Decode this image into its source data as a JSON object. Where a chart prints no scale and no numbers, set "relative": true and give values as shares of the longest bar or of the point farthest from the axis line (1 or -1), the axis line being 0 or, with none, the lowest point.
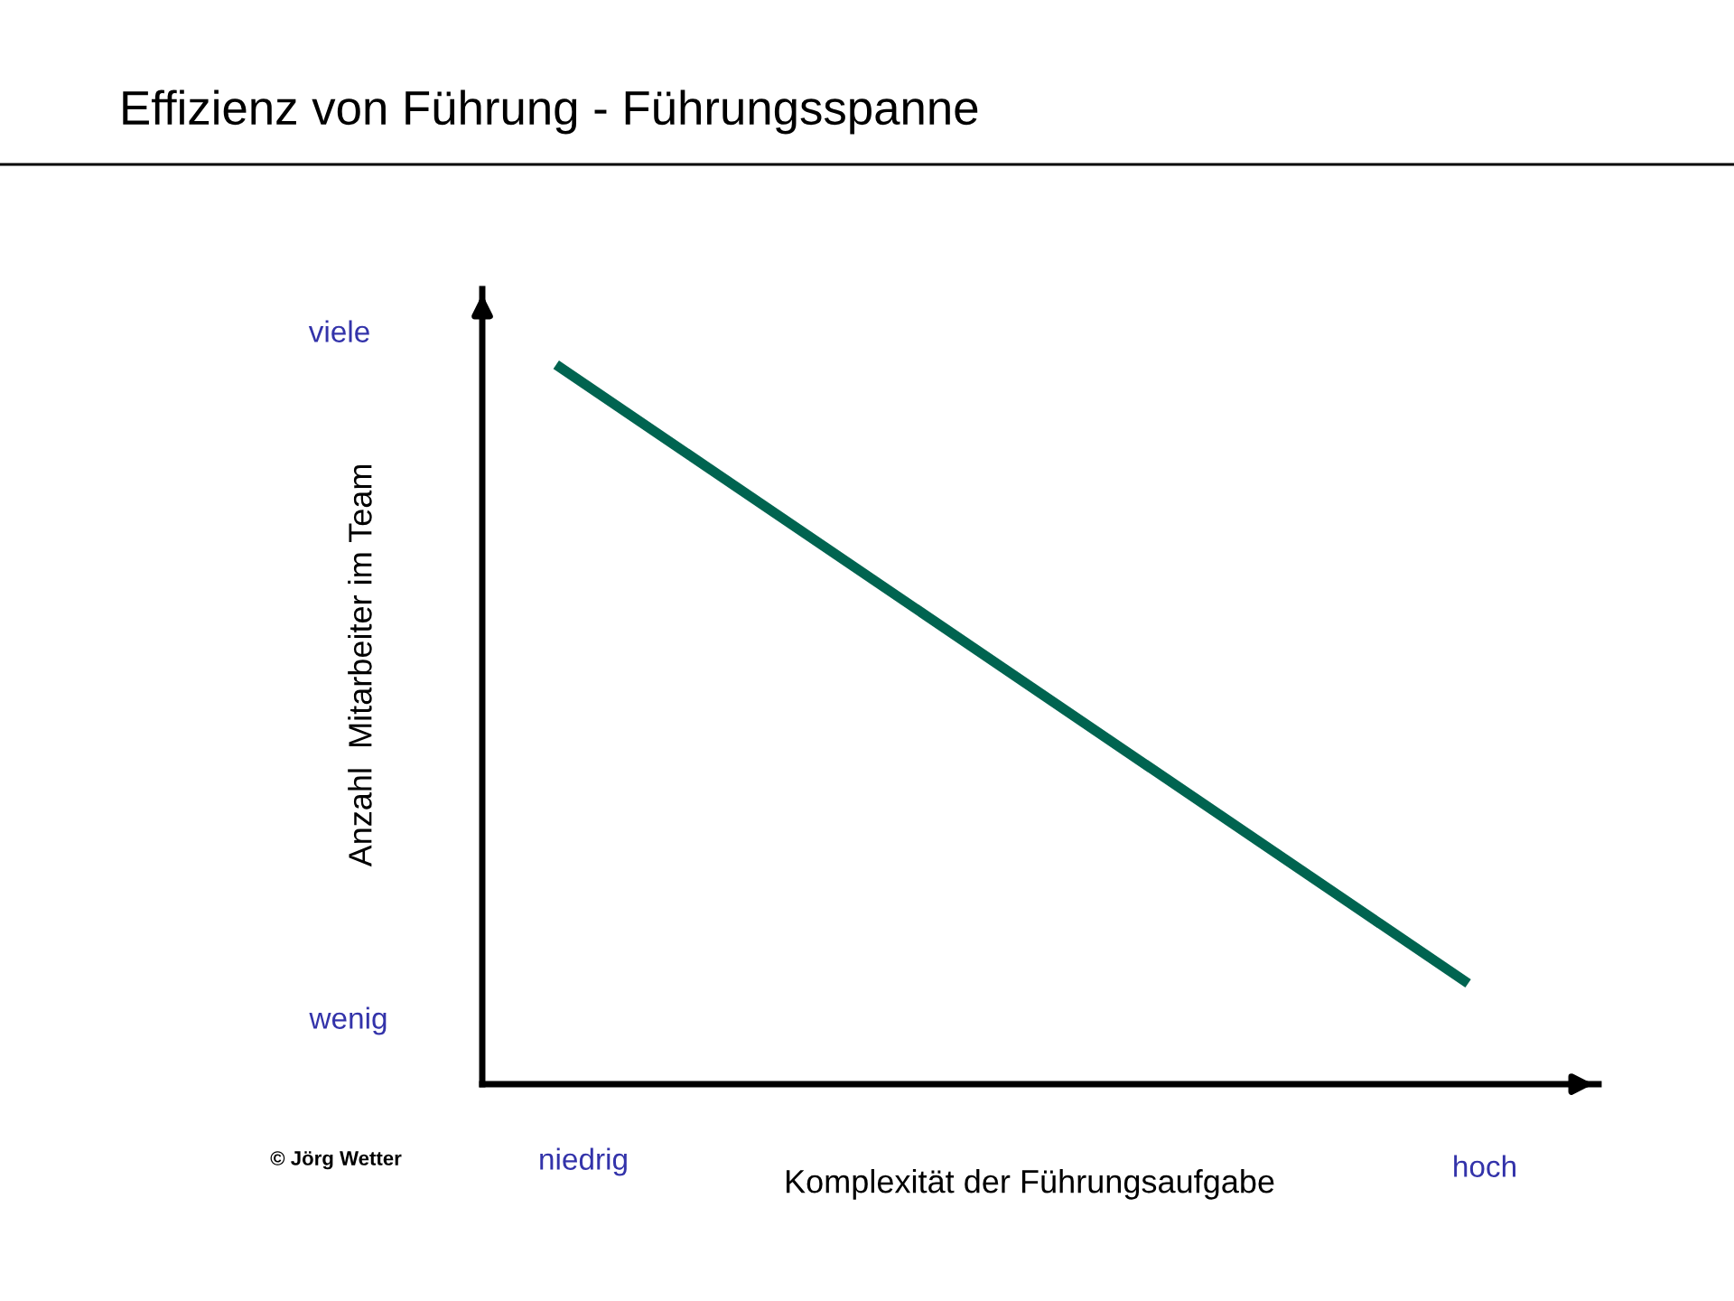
{
  "chart_data": {
    "type": "line",
    "title": "Effizienz von Führung - Führungsspanne",
    "xlabel": "Komplexität der Führungsaufgabe",
    "ylabel": "Anzahl  Mitarbeiter im Team",
    "relative": true,
    "categories": [
      null,
      null
    ],
    "series": [
      {
        "color": "#006450",
        "values": [
          1,
          0.14
        ]
      }
    ],
    "annotations": [
      "viele",
      "wenig",
      "niedrig",
      "hoch",
      "© Jörg Wetter"
    ]
  }
}
